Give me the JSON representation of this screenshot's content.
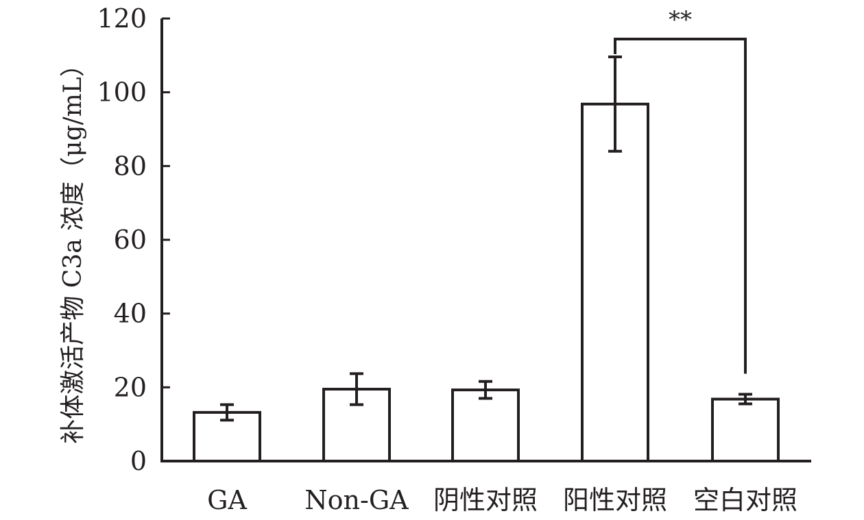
{
  "chart_data": {
    "type": "bar",
    "title": "",
    "xlabel": "",
    "ylabel": "补体激活产物 C3a 浓度（μg/mL）",
    "ylim": [
      0,
      120
    ],
    "yticks": [
      0,
      20,
      40,
      60,
      80,
      100,
      120
    ],
    "categories": [
      "GA",
      "Non-GA",
      "阴性对照",
      "阳性对照",
      "空白对照"
    ],
    "values": [
      13.2,
      19.5,
      19.3,
      96.8,
      16.8
    ],
    "errors": [
      2.1,
      4.2,
      2.3,
      12.8,
      1.3
    ],
    "grid": false,
    "legend": "none",
    "significance": [
      {
        "from": 3,
        "to": 4,
        "label": "**"
      }
    ]
  }
}
